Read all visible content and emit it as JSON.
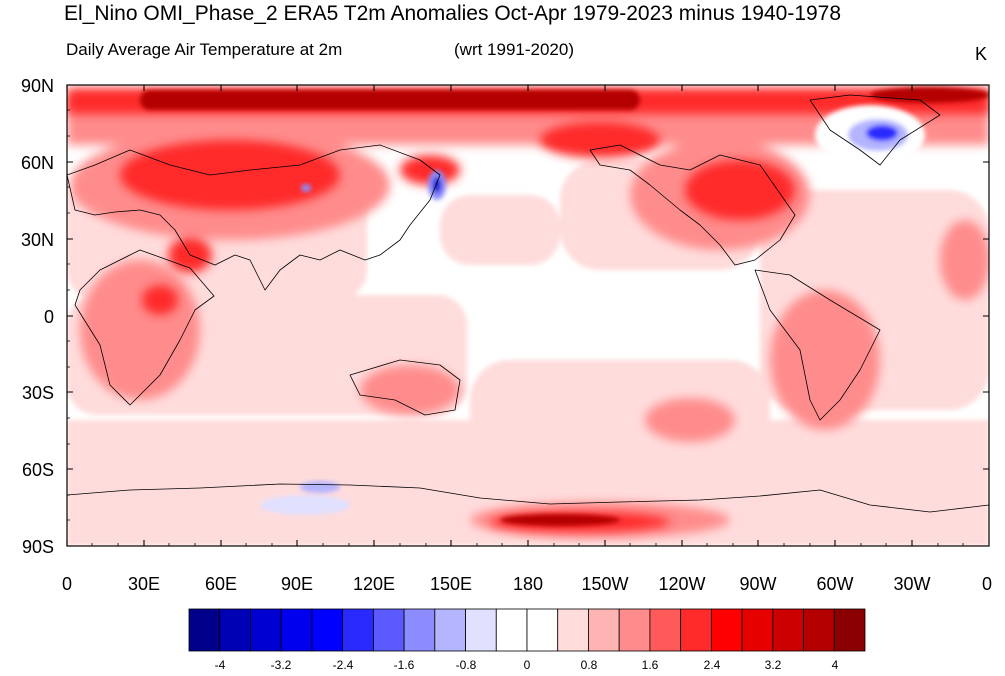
{
  "title": "El_Nino OMI_Phase_2 ERA5 T2m Anomalies Oct-Apr 1979-2023 minus 1940-1978",
  "subtitle_left": "Daily Average Air Temperature at 2m",
  "subtitle_right": "(wrt 1991-2020)",
  "units": "K",
  "map": {
    "projection": "cylindrical-equidistant",
    "center_longitude": 180,
    "lat_range": [
      -90,
      90
    ],
    "lat_ticks": [
      "90N",
      "60N",
      "30N",
      "0",
      "30S",
      "60S",
      "90S"
    ],
    "lon_ticks": [
      "0",
      "30E",
      "60E",
      "90E",
      "120E",
      "150E",
      "180",
      "150W",
      "120W",
      "90W",
      "60W",
      "30W",
      "0"
    ]
  },
  "colorbar": {
    "colors": [
      "#00008b",
      "#0000b4",
      "#0000d2",
      "#0000ee",
      "#0000ff",
      "#2a2aff",
      "#5a5aff",
      "#8c8cff",
      "#b4b4ff",
      "#e0e0ff",
      "#ffffff",
      "#ffffff",
      "#ffdcdc",
      "#ffb4b4",
      "#ff8c8c",
      "#ff5a5a",
      "#ff2a2a",
      "#ff0000",
      "#e60000",
      "#cc0000",
      "#b40000",
      "#8b0000"
    ],
    "labels": [
      "-4",
      "-3.2",
      "-2.4",
      "-1.6",
      "-0.8",
      "0",
      "0.8",
      "1.6",
      "2.4",
      "3.2",
      "4"
    ]
  }
}
